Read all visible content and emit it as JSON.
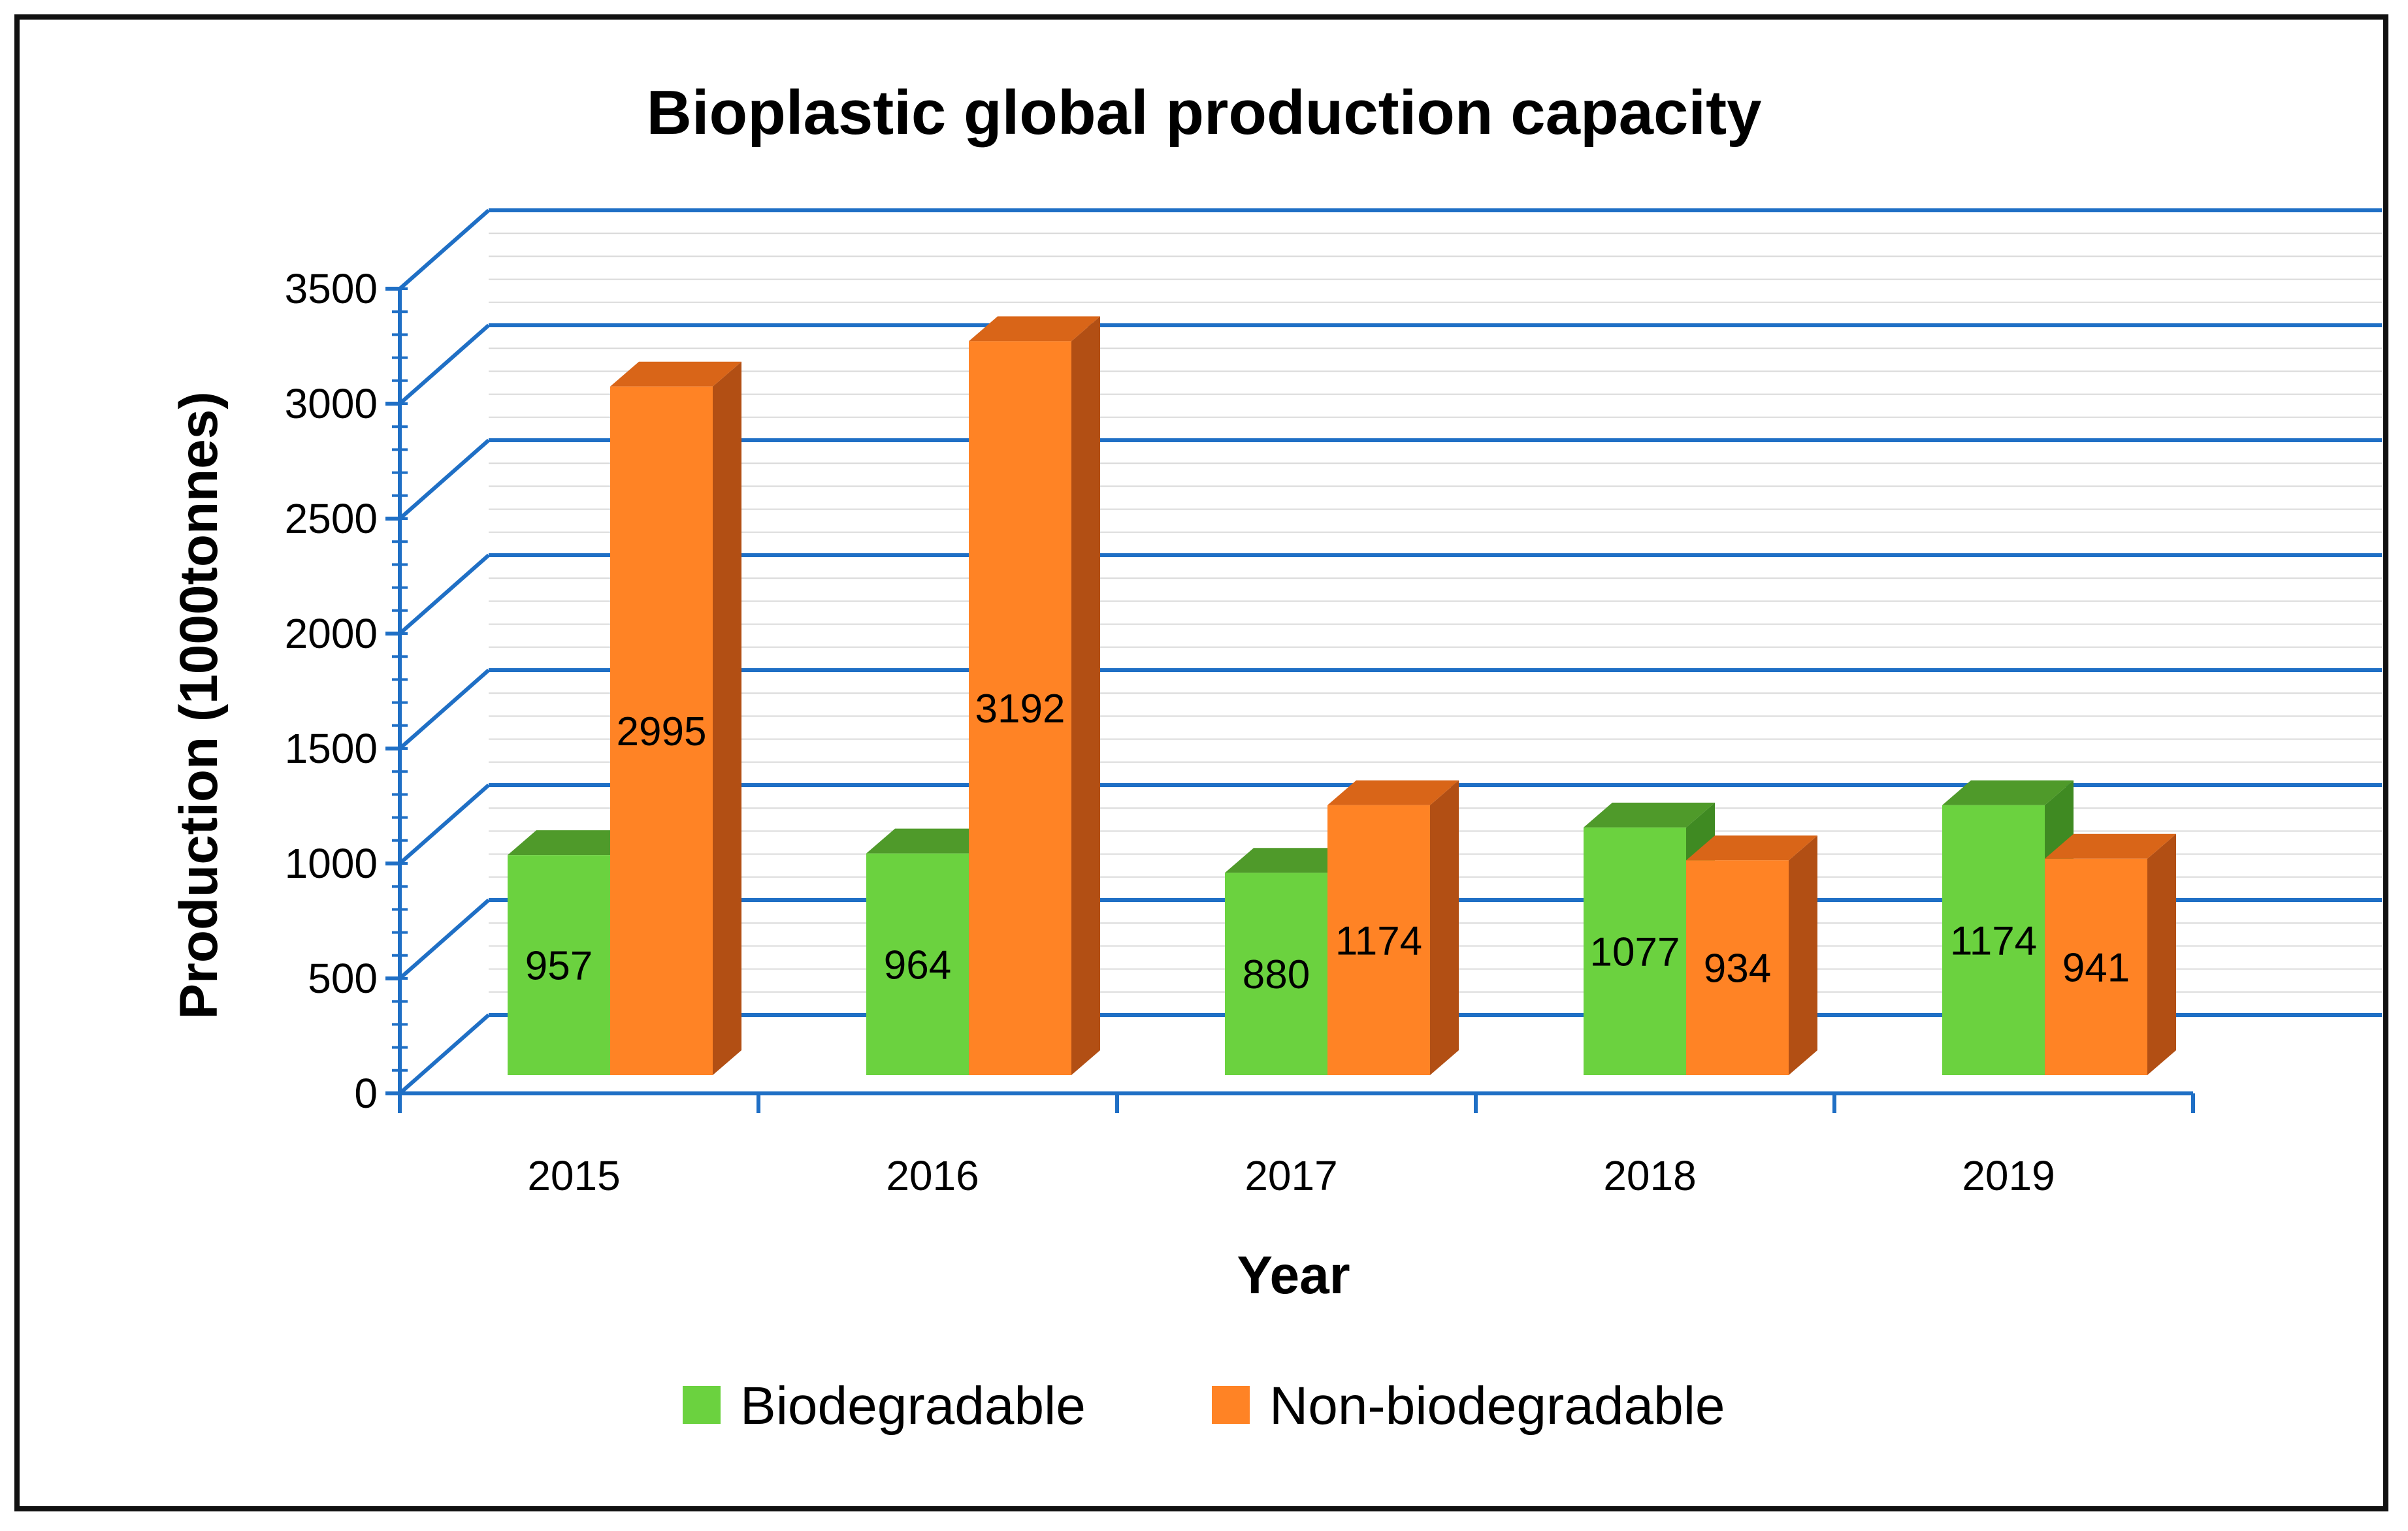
{
  "chart_data": {
    "type": "bar",
    "title": "Bioplastic global production capacity",
    "xlabel": "Year",
    "ylabel": "Production (1000tonnes)",
    "categories": [
      "2015",
      "2016",
      "2017",
      "2018",
      "2019"
    ],
    "series": [
      {
        "name": "Biodegradable",
        "values": [
          957,
          964,
          880,
          1077,
          1174
        ],
        "color": "#6bd23f",
        "top_color": "#4f9a2a",
        "side_color": "#3f8a22"
      },
      {
        "name": "Non-biodegradable",
        "values": [
          2995,
          3192,
          1174,
          934,
          941
        ],
        "color": "#ff8325",
        "top_color": "#d96518",
        "side_color": "#b24f14"
      }
    ],
    "ylim": [
      0,
      3500
    ],
    "yticks": [
      0,
      500,
      1000,
      1500,
      2000,
      2500,
      3000,
      3500
    ],
    "grid": true,
    "grid_color": "#1f6fc5",
    "legend": "bottom",
    "projection": "3d"
  }
}
